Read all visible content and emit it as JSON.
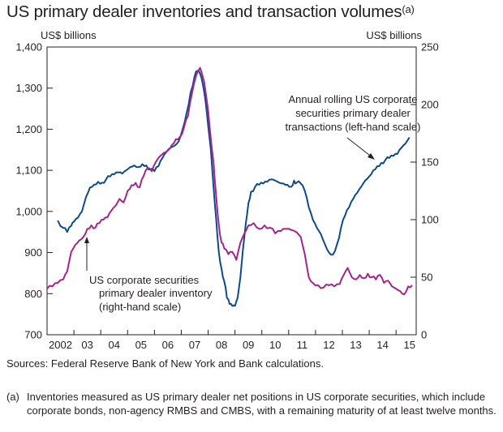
{
  "title": "US primary dealer inventories and transaction volumes",
  "title_footnote_mark": "(a)",
  "chart_data": {
    "type": "line",
    "left_axis": {
      "unit_label": "US$ billions",
      "ylim": [
        700,
        1400
      ],
      "ticks": [
        700,
        800,
        900,
        1000,
        1100,
        1200,
        1300,
        1400
      ],
      "tick_labels": [
        "700",
        "800",
        "900",
        "1,000",
        "1,100",
        "1,200",
        "1,300",
        "1,400"
      ]
    },
    "right_axis": {
      "unit_label": "US$ billions",
      "ylim": [
        0,
        250
      ],
      "ticks": [
        0,
        50,
        100,
        150,
        200,
        250
      ],
      "tick_labels": [
        "0",
        "50",
        "100",
        "150",
        "200",
        "250"
      ]
    },
    "x_axis": {
      "range": [
        2002.0,
        2015.75
      ],
      "tick_labels": [
        "2002",
        "03",
        "04",
        "05",
        "06",
        "07",
        "08",
        "09",
        "10",
        "11",
        "12",
        "13",
        "14",
        "15"
      ],
      "label_positions": [
        2002.5,
        2003.5,
        2004.5,
        2005.5,
        2006.5,
        2007.5,
        2008.5,
        2009.5,
        2010.5,
        2011.5,
        2012.5,
        2013.5,
        2014.5,
        2015.5
      ]
    },
    "series": [
      {
        "name": "Annual rolling US corporate securities primary dealer transactions (left-hand scale)",
        "axis": "left",
        "color": "#0b4a8b",
        "x": [
          2002.4,
          2002.6,
          2002.75,
          2002.9,
          2003.0,
          2003.15,
          2003.3,
          2003.45,
          2003.6,
          2003.75,
          2003.9,
          2004.05,
          2004.2,
          2004.35,
          2004.5,
          2004.65,
          2004.8,
          2004.95,
          2005.1,
          2005.25,
          2005.4,
          2005.55,
          2005.7,
          2005.85,
          2006.0,
          2006.15,
          2006.3,
          2006.45,
          2006.6,
          2006.75,
          2006.9,
          2007.05,
          2007.2,
          2007.35,
          2007.5,
          2007.6,
          2007.7,
          2007.8,
          2007.9,
          2008.0,
          2008.1,
          2008.2,
          2008.3,
          2008.4,
          2008.5,
          2008.6,
          2008.7,
          2008.8,
          2008.9,
          2009.0,
          2009.1,
          2009.2,
          2009.3,
          2009.4,
          2009.5,
          2009.6,
          2009.75,
          2009.9,
          2010.05,
          2010.2,
          2010.35,
          2010.5,
          2010.65,
          2010.8,
          2010.95,
          2011.1,
          2011.2,
          2011.3,
          2011.45,
          2011.6,
          2011.75,
          2011.9,
          2012.05,
          2012.2,
          2012.35,
          2012.5,
          2012.65,
          2012.8,
          2012.95,
          2013.1,
          2013.25,
          2013.4,
          2013.55,
          2013.7,
          2013.85,
          2014.0,
          2014.15,
          2014.3,
          2014.45,
          2014.6,
          2014.75,
          2014.9,
          2015.05,
          2015.2,
          2015.35,
          2015.5
        ],
        "y": [
          978,
          960,
          950,
          965,
          975,
          985,
          1000,
          1035,
          1058,
          1065,
          1072,
          1070,
          1078,
          1085,
          1090,
          1095,
          1092,
          1100,
          1108,
          1112,
          1108,
          1115,
          1112,
          1102,
          1098,
          1110,
          1130,
          1145,
          1155,
          1160,
          1170,
          1200,
          1240,
          1290,
          1330,
          1342,
          1335,
          1310,
          1270,
          1210,
          1150,
          1060,
          980,
          900,
          860,
          830,
          790,
          775,
          770,
          770,
          790,
          840,
          910,
          970,
          1020,
          1048,
          1060,
          1065,
          1068,
          1072,
          1078,
          1075,
          1070,
          1068,
          1065,
          1060,
          1075,
          1070,
          1068,
          1050,
          1010,
          980,
          960,
          945,
          920,
          900,
          895,
          920,
          960,
          990,
          1010,
          1030,
          1045,
          1060,
          1075,
          1085,
          1100,
          1110,
          1118,
          1125,
          1130,
          1135,
          1140,
          1155,
          1165,
          1180
        ]
      },
      {
        "name": "US corporate securities primary dealer inventory (right-hand scale)",
        "axis": "right",
        "color": "#a3248c",
        "x": [
          2002.0,
          2002.2,
          2002.4,
          2002.6,
          2002.75,
          2002.9,
          2003.05,
          2003.2,
          2003.35,
          2003.5,
          2003.65,
          2003.8,
          2003.95,
          2004.1,
          2004.25,
          2004.4,
          2004.55,
          2004.7,
          2004.85,
          2005.0,
          2005.15,
          2005.3,
          2005.45,
          2005.6,
          2005.75,
          2005.9,
          2006.05,
          2006.2,
          2006.35,
          2006.5,
          2006.65,
          2006.8,
          2006.95,
          2007.1,
          2007.25,
          2007.4,
          2007.55,
          2007.7,
          2007.85,
          2008.0,
          2008.1,
          2008.2,
          2008.3,
          2008.4,
          2008.5,
          2008.6,
          2008.75,
          2008.9,
          2009.05,
          2009.2,
          2009.35,
          2009.5,
          2009.7,
          2009.9,
          2010.1,
          2010.3,
          2010.5,
          2010.7,
          2010.9,
          2011.1,
          2011.3,
          2011.45,
          2011.6,
          2011.75,
          2011.9,
          2012.1,
          2012.3,
          2012.5,
          2012.7,
          2012.9,
          2013.05,
          2013.2,
          2013.35,
          2013.5,
          2013.65,
          2013.8,
          2013.95,
          2014.1,
          2014.25,
          2014.4,
          2014.55,
          2014.7,
          2014.85,
          2015.0,
          2015.15,
          2015.3,
          2015.45,
          2015.6
        ],
        "y": [
          40,
          42,
          45,
          48,
          55,
          72,
          78,
          82,
          85,
          92,
          95,
          93,
          97,
          100,
          102,
          108,
          112,
          118,
          115,
          125,
          130,
          132,
          128,
          138,
          145,
          142,
          150,
          155,
          158,
          160,
          165,
          170,
          172,
          180,
          190,
          210,
          225,
          232,
          220,
          195,
          170,
          150,
          120,
          95,
          80,
          75,
          70,
          72,
          65,
          80,
          88,
          95,
          97,
          92,
          95,
          93,
          88,
          90,
          92,
          91,
          89,
          85,
          70,
          50,
          45,
          43,
          41,
          43,
          42,
          44,
          52,
          58,
          50,
          48,
          52,
          49,
          53,
          50,
          48,
          52,
          45,
          47,
          42,
          40,
          38,
          35,
          42,
          43
        ]
      }
    ],
    "annotations": [
      {
        "text_lines": [
          "Annual rolling US corporate",
          "securities primary dealer",
          "transactions (left-hand scale)"
        ]
      },
      {
        "text_lines": [
          "US corporate securities",
          "primary dealer inventory",
          "(right-hand scale)"
        ]
      }
    ]
  },
  "sources": "Sources:  Federal Reserve Bank of New York and Bank calculations.",
  "footnote": {
    "mark": "(a)",
    "text": "Inventories measured as US primary dealer net positions in US corporate securities, which include corporate bonds, non-agency RMBS and CMBS, with a remaining maturity of at least twelve months."
  }
}
